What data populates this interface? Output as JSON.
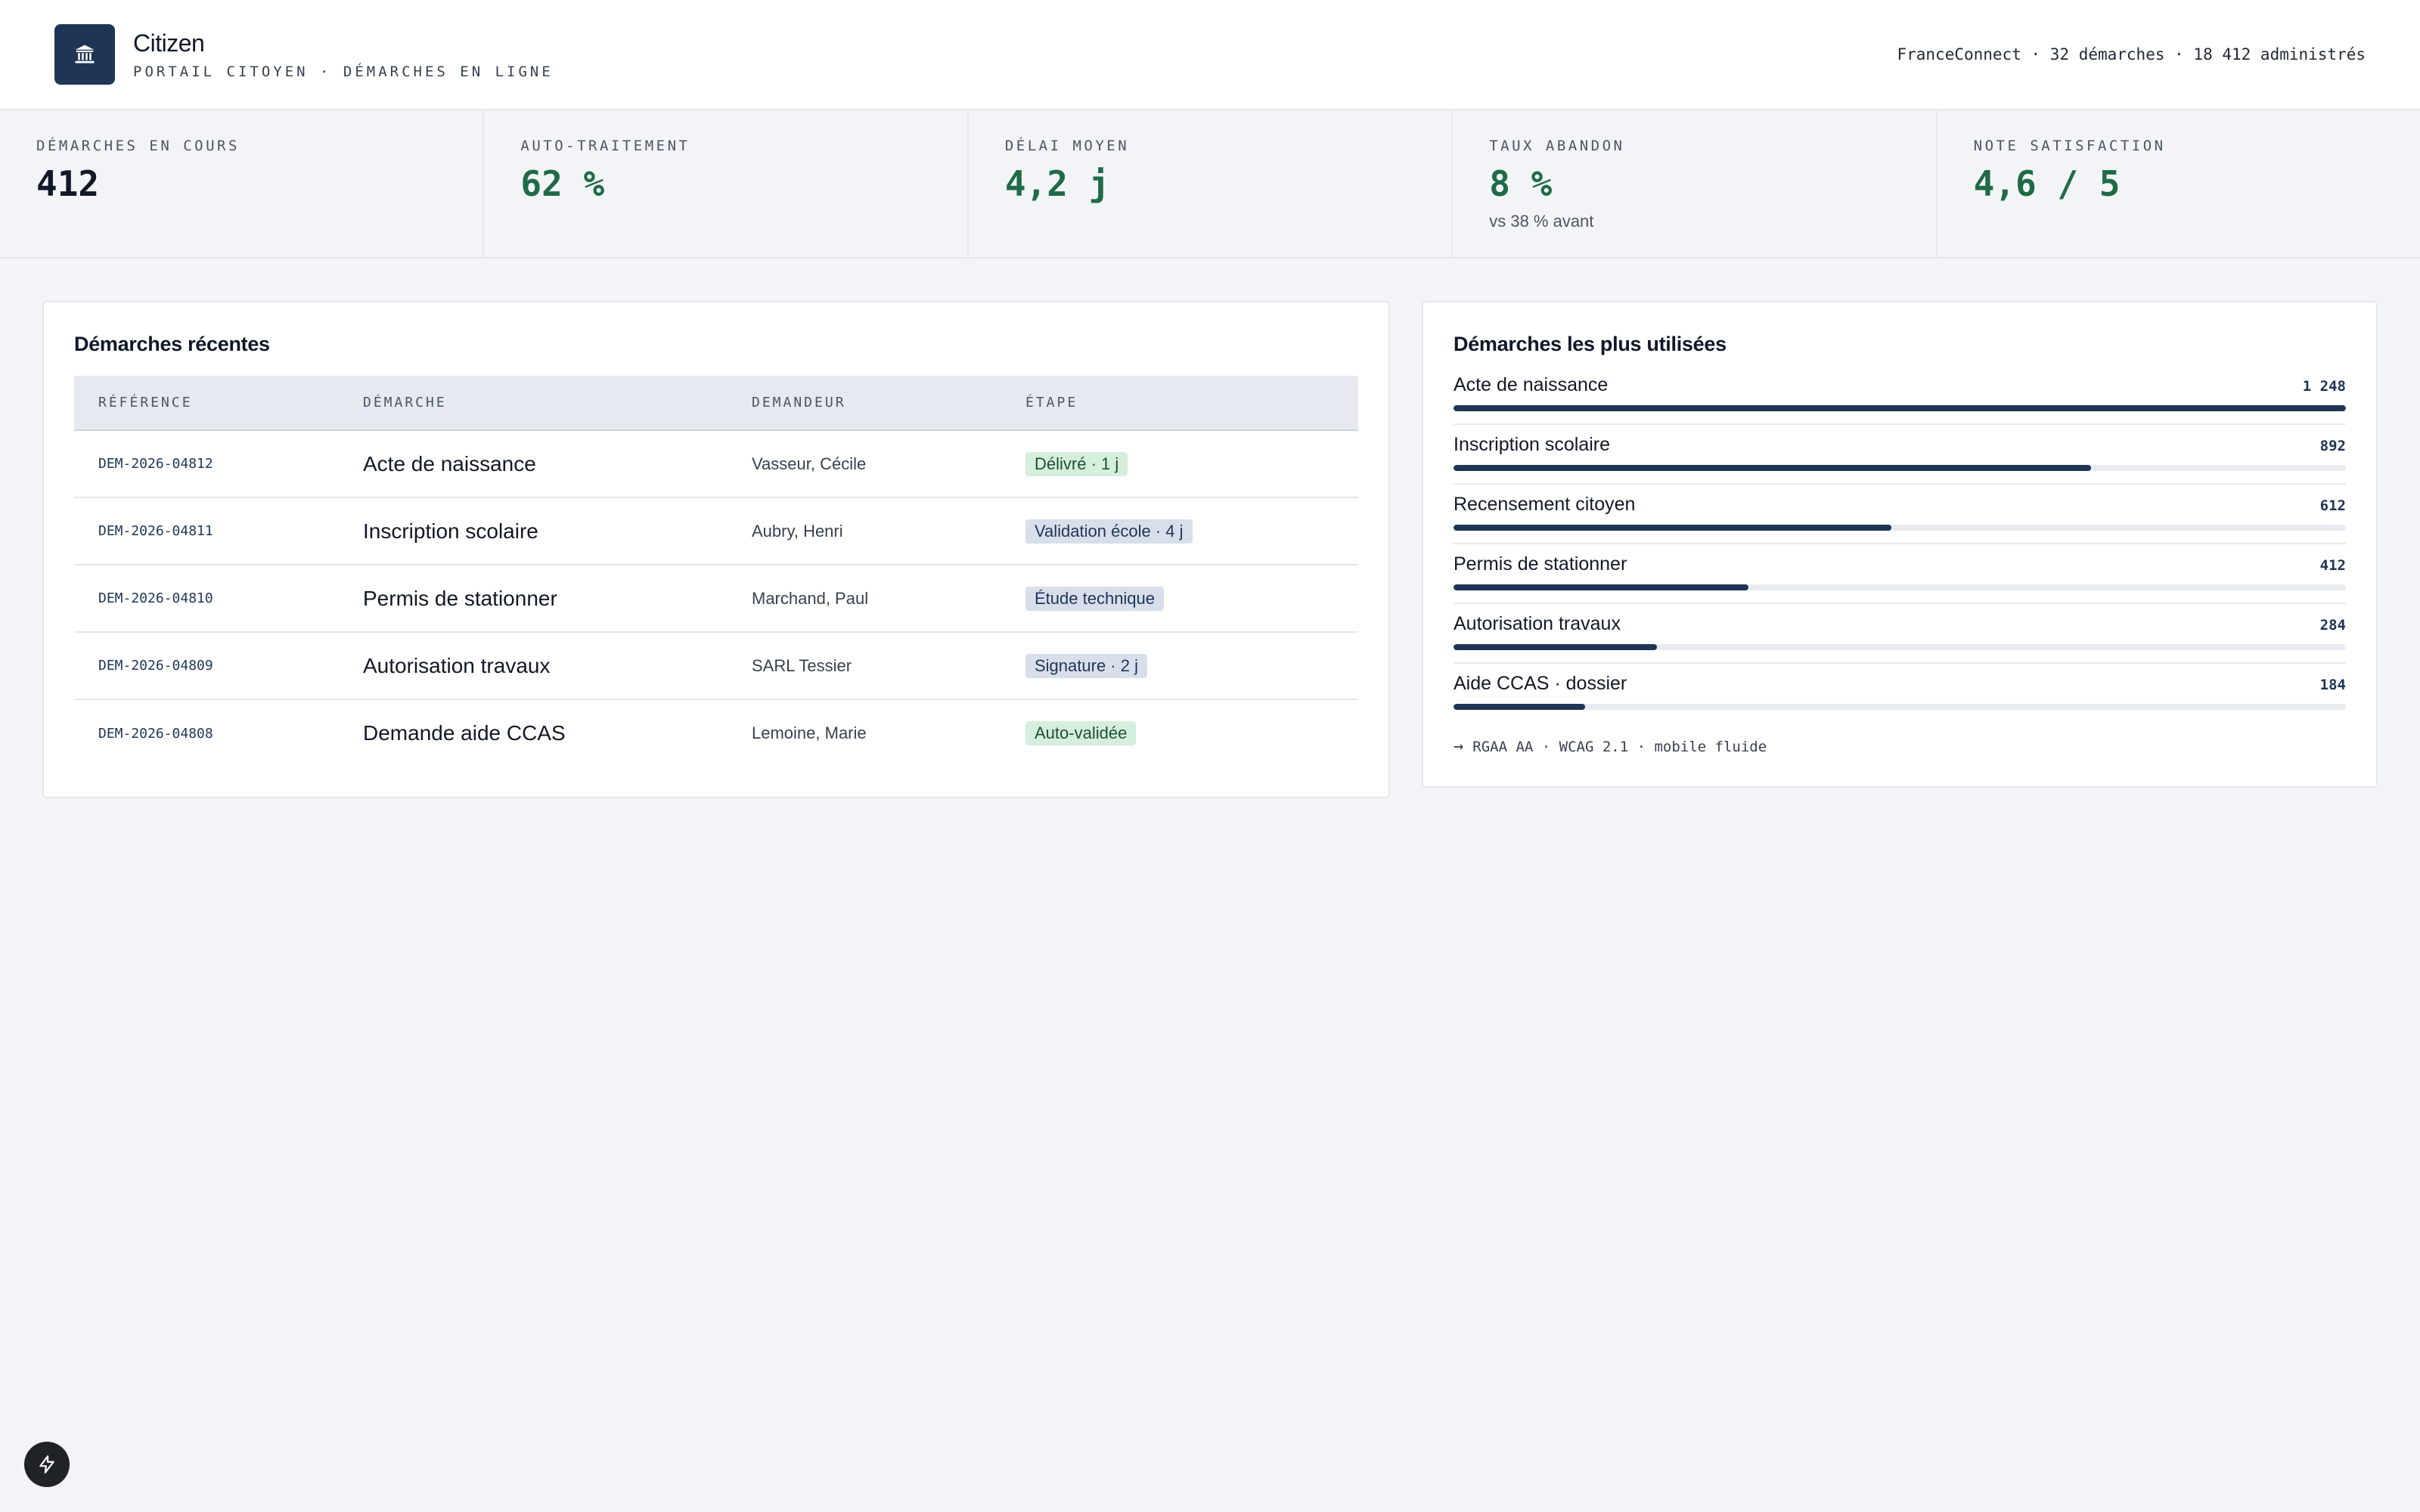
{
  "header": {
    "title": "Citizen",
    "subtitle": "PORTAIL CITOYEN · DÉMARCHES EN LIGNE",
    "meta": "FranceConnect · 32 démarches · 18 412 administrés",
    "logo_icon": "bank-building-icon"
  },
  "kpis": [
    {
      "label": "DÉMARCHES EN COURS",
      "value": "412",
      "sub": ""
    },
    {
      "label": "AUTO-TRAITEMENT",
      "value": "62 %",
      "sub": ""
    },
    {
      "label": "DÉLAI MOYEN",
      "value": "4,2 j",
      "sub": ""
    },
    {
      "label": "TAUX ABANDON",
      "value": "8 %",
      "sub": "vs 38 % avant"
    },
    {
      "label": "NOTE SATISFACTION",
      "value": "4,6 / 5",
      "sub": ""
    }
  ],
  "recent": {
    "title": "Démarches récentes",
    "columns": [
      "RÉFÉRENCE",
      "DÉMARCHE",
      "DEMANDEUR",
      "ÉTAPE"
    ],
    "rows": [
      {
        "ref": "DEM-2026-04812",
        "demarche": "Acte de naissance",
        "demandeur": "Vasseur, Cécile",
        "etape": "Délivré · 1 j",
        "tone": "green"
      },
      {
        "ref": "DEM-2026-04811",
        "demarche": "Inscription scolaire",
        "demandeur": "Aubry, Henri",
        "etape": "Validation école · 4 j",
        "tone": "blue"
      },
      {
        "ref": "DEM-2026-04810",
        "demarche": "Permis de stationner",
        "demandeur": "Marchand, Paul",
        "etape": "Étude technique",
        "tone": "blue"
      },
      {
        "ref": "DEM-2026-04809",
        "demarche": "Autorisation travaux",
        "demandeur": "SARL Tessier",
        "etape": "Signature · 2 j",
        "tone": "blue"
      },
      {
        "ref": "DEM-2026-04808",
        "demarche": "Demande aide CCAS",
        "demandeur": "Lemoine, Marie",
        "etape": "Auto-validée",
        "tone": "green"
      }
    ]
  },
  "popular": {
    "title": "Démarches les plus utilisées",
    "items": [
      {
        "name": "Acte de naissance",
        "count": "1 248",
        "value": 1248
      },
      {
        "name": "Inscription scolaire",
        "count": "892",
        "value": 892
      },
      {
        "name": "Recensement citoyen",
        "count": "612",
        "value": 612
      },
      {
        "name": "Permis de stationner",
        "count": "412",
        "value": 412
      },
      {
        "name": "Autorisation travaux",
        "count": "284",
        "value": 284
      },
      {
        "name": "Aide CCAS · dossier",
        "count": "184",
        "value": 184
      }
    ],
    "max": 1248,
    "footnote": "RGAA AA · WCAG 2.1 · mobile fluide"
  },
  "colors": {
    "brand": "#1f3556",
    "positive": "#1f6b47",
    "badge_green_bg": "#d6eedd",
    "badge_blue_bg": "#d8dfeb"
  }
}
